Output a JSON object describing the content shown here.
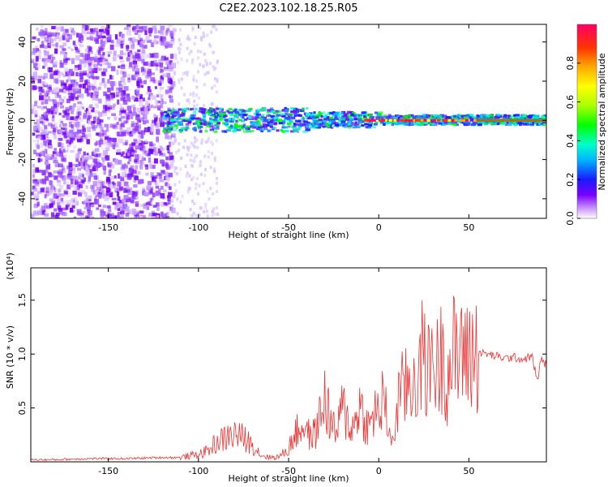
{
  "figure": {
    "title": "C2E2.2023.102.18.25.R05"
  },
  "chart_data": [
    {
      "type": "heatmap",
      "title": "C2E2.2023.102.18.25.R05",
      "xlabel": "Height of straight line (km)",
      "ylabel": "Frequency (Hz)",
      "xlim": [
        -193,
        93
      ],
      "ylim": [
        -50,
        49
      ],
      "xticks": [
        -150,
        -100,
        -50,
        0,
        50
      ],
      "yticks": [
        -40,
        -20,
        0,
        20,
        40
      ],
      "colorbar": {
        "label": "Normalized spectral amplitude",
        "range": [
          0,
          1
        ],
        "ticks": [
          "0.0",
          "0.2",
          "0.4",
          "0.6",
          "0.8"
        ],
        "tick_values": [
          0.0,
          0.2,
          0.4,
          0.6,
          0.8
        ],
        "colormap": "rainbow"
      },
      "description_points": {
        "noise_region_x": [
          -193,
          -115
        ],
        "echo_center_frequency_hz": 0,
        "echo_start_x": -120,
        "strong_echo_start_x": -10
      },
      "grid": false
    },
    {
      "type": "line",
      "xlabel": "Height of straight line (km)",
      "ylabel": "SNR (10 * v/v)",
      "yscale_note": "(x10⁴)",
      "xlim": [
        -193,
        93
      ],
      "ylim": [
        0,
        1.8
      ],
      "xticks": [
        -150,
        -100,
        -50,
        0,
        50
      ],
      "yticks": [
        "0.5",
        "1.0",
        "1.5"
      ],
      "ytick_values": [
        0.5,
        1.0,
        1.5
      ],
      "color": "#ee3333",
      "series": [
        {
          "x": [
            -193,
            -180,
            -160,
            -140,
            -120,
            -110,
            -100,
            -95,
            -90,
            -85,
            -80,
            -75,
            -70,
            -65,
            -60,
            -55,
            -50,
            -47,
            -44,
            -41,
            -38,
            -35,
            -32,
            -30,
            -27,
            -24,
            -20,
            -17,
            -14,
            -11,
            -8,
            -5,
            -2,
            0,
            2,
            4,
            6,
            8,
            10,
            12,
            14,
            16,
            18,
            20,
            22,
            24,
            26,
            28,
            30,
            32,
            34,
            36,
            38,
            40,
            42,
            44,
            46,
            48,
            50,
            52,
            55,
            60,
            65,
            70,
            75,
            80,
            85,
            88,
            90,
            93
          ],
          "y": [
            0.02,
            0.02,
            0.03,
            0.03,
            0.04,
            0.04,
            0.07,
            0.1,
            0.18,
            0.22,
            0.26,
            0.22,
            0.16,
            0.06,
            0.04,
            0.05,
            0.12,
            0.25,
            0.3,
            0.35,
            0.22,
            0.28,
            0.45,
            0.6,
            0.4,
            0.25,
            0.5,
            0.38,
            0.3,
            0.55,
            0.4,
            0.3,
            0.5,
            0.42,
            0.55,
            0.45,
            0.3,
            0.15,
            0.5,
            0.7,
            0.6,
            0.75,
            0.65,
            0.9,
            0.7,
            0.95,
            1.0,
            0.8,
            1.1,
            0.85,
            0.9,
            1.15,
            0.75,
            0.95,
            1.0,
            0.85,
            1.2,
            0.9,
            1.05,
            1.0,
            1.02,
            1.0,
            0.98,
            0.96,
            0.97,
            0.95,
            0.98,
            0.75,
            0.95,
            0.9
          ]
        }
      ],
      "grid": false
    }
  ]
}
